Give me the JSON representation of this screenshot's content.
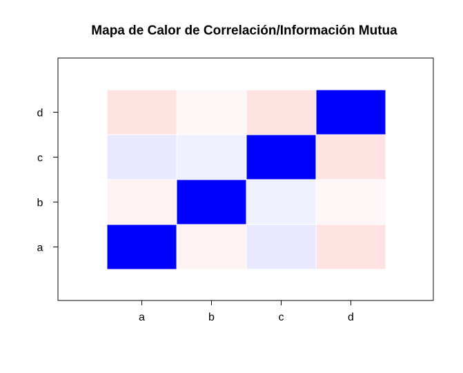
{
  "chart_data": {
    "type": "heatmap",
    "title": "Mapa de Calor de Correlación/Información Mutua",
    "xlabel": "",
    "ylabel": "",
    "x_categories": [
      "a",
      "b",
      "c",
      "d"
    ],
    "y_categories": [
      "a",
      "b",
      "c",
      "d"
    ],
    "grid": false,
    "legend": "none",
    "color_scale": {
      "positive": "#0000ff",
      "zero": "#ffffff",
      "negative": "#ff0000",
      "range": [
        -1,
        1
      ]
    },
    "cells": [
      {
        "x": "a",
        "y": "a",
        "value": 1.0
      },
      {
        "x": "b",
        "y": "a",
        "value": -0.05
      },
      {
        "x": "c",
        "y": "a",
        "value": 0.09
      },
      {
        "x": "d",
        "y": "a",
        "value": -0.11
      },
      {
        "x": "a",
        "y": "b",
        "value": -0.05
      },
      {
        "x": "b",
        "y": "b",
        "value": 1.0
      },
      {
        "x": "c",
        "y": "b",
        "value": 0.06
      },
      {
        "x": "d",
        "y": "b",
        "value": -0.03
      },
      {
        "x": "a",
        "y": "c",
        "value": 0.09
      },
      {
        "x": "b",
        "y": "c",
        "value": 0.06
      },
      {
        "x": "c",
        "y": "c",
        "value": 1.0
      },
      {
        "x": "d",
        "y": "c",
        "value": -0.11
      },
      {
        "x": "a",
        "y": "d",
        "value": -0.11
      },
      {
        "x": "b",
        "y": "d",
        "value": -0.03
      },
      {
        "x": "c",
        "y": "d",
        "value": -0.11
      },
      {
        "x": "d",
        "y": "d",
        "value": 1.0
      }
    ]
  }
}
